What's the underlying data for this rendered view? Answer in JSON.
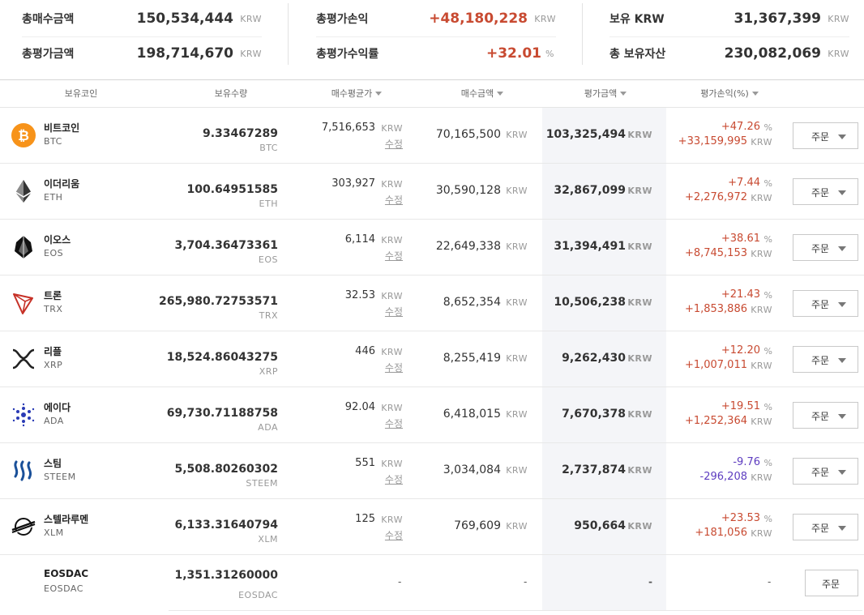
{
  "summary": {
    "total_buy": {
      "label": "총매수금액",
      "value": "150,534,444",
      "unit": "KRW"
    },
    "total_eval": {
      "label": "총평가금액",
      "value": "198,714,670",
      "unit": "KRW"
    },
    "total_pl": {
      "label": "총평가손익",
      "value": "+48,180,228",
      "unit": "KRW"
    },
    "total_rate": {
      "label": "총평가수익률",
      "value": "+32.01",
      "unit": "%"
    },
    "krw": {
      "label": "보유 KRW",
      "value": "31,367,399",
      "unit": "KRW"
    },
    "total_asset": {
      "label": "총 보유자산",
      "value": "230,082,069",
      "unit": "KRW"
    }
  },
  "headers": {
    "coin": "보유코인",
    "qty": "보유수량",
    "avg": "매수평균가",
    "buy": "매수금액",
    "eval": "평가금액",
    "pl": "평가손익(%)"
  },
  "colors": {
    "up": "#c84a31",
    "down": "#5d3cc0",
    "eval_bg": "#f4f5f8"
  },
  "rows": [
    {
      "icon": "bitcoin-icon",
      "name": "비트코인",
      "symbol": "BTC",
      "qty": "9.33467289",
      "qty_unit": "BTC",
      "avg": "7,516,653",
      "avg_unit": "KRW",
      "edit": "수정",
      "buy": "70,165,500",
      "buy_unit": "KRW",
      "eval": "103,325,494",
      "eval_unit": "KRW",
      "pct": "+47.26",
      "pct_unit": "%",
      "pl": "+33,159,995",
      "pl_unit": "KRW",
      "dir": "up",
      "order": "주문"
    },
    {
      "icon": "ethereum-icon",
      "name": "이더리움",
      "symbol": "ETH",
      "qty": "100.64951585",
      "qty_unit": "ETH",
      "avg": "303,927",
      "avg_unit": "KRW",
      "edit": "수정",
      "buy": "30,590,128",
      "buy_unit": "KRW",
      "eval": "32,867,099",
      "eval_unit": "KRW",
      "pct": "+7.44",
      "pct_unit": "%",
      "pl": "+2,276,972",
      "pl_unit": "KRW",
      "dir": "up",
      "order": "주문"
    },
    {
      "icon": "eos-icon",
      "name": "이오스",
      "symbol": "EOS",
      "qty": "3,704.36473361",
      "qty_unit": "EOS",
      "avg": "6,114",
      "avg_unit": "KRW",
      "edit": "수정",
      "buy": "22,649,338",
      "buy_unit": "KRW",
      "eval": "31,394,491",
      "eval_unit": "KRW",
      "pct": "+38.61",
      "pct_unit": "%",
      "pl": "+8,745,153",
      "pl_unit": "KRW",
      "dir": "up",
      "order": "주문"
    },
    {
      "icon": "tron-icon",
      "name": "트론",
      "symbol": "TRX",
      "qty": "265,980.72753571",
      "qty_unit": "TRX",
      "avg": "32.53",
      "avg_unit": "KRW",
      "edit": "수정",
      "buy": "8,652,354",
      "buy_unit": "KRW",
      "eval": "10,506,238",
      "eval_unit": "KRW",
      "pct": "+21.43",
      "pct_unit": "%",
      "pl": "+1,853,886",
      "pl_unit": "KRW",
      "dir": "up",
      "order": "주문"
    },
    {
      "icon": "ripple-icon",
      "name": "리플",
      "symbol": "XRP",
      "qty": "18,524.86043275",
      "qty_unit": "XRP",
      "avg": "446",
      "avg_unit": "KRW",
      "edit": "수정",
      "buy": "8,255,419",
      "buy_unit": "KRW",
      "eval": "9,262,430",
      "eval_unit": "KRW",
      "pct": "+12.20",
      "pct_unit": "%",
      "pl": "+1,007,011",
      "pl_unit": "KRW",
      "dir": "up",
      "order": "주문"
    },
    {
      "icon": "cardano-icon",
      "name": "에이다",
      "symbol": "ADA",
      "qty": "69,730.71188758",
      "qty_unit": "ADA",
      "avg": "92.04",
      "avg_unit": "KRW",
      "edit": "수정",
      "buy": "6,418,015",
      "buy_unit": "KRW",
      "eval": "7,670,378",
      "eval_unit": "KRW",
      "pct": "+19.51",
      "pct_unit": "%",
      "pl": "+1,252,364",
      "pl_unit": "KRW",
      "dir": "up",
      "order": "주문"
    },
    {
      "icon": "steem-icon",
      "name": "스팀",
      "symbol": "STEEM",
      "qty": "5,508.80260302",
      "qty_unit": "STEEM",
      "avg": "551",
      "avg_unit": "KRW",
      "edit": "수정",
      "buy": "3,034,084",
      "buy_unit": "KRW",
      "eval": "2,737,874",
      "eval_unit": "KRW",
      "pct": "-9.76",
      "pct_unit": "%",
      "pl": "-296,208",
      "pl_unit": "KRW",
      "dir": "down",
      "order": "주문"
    },
    {
      "icon": "stellar-icon",
      "name": "스텔라루멘",
      "symbol": "XLM",
      "qty": "6,133.31640794",
      "qty_unit": "XLM",
      "avg": "125",
      "avg_unit": "KRW",
      "edit": "수정",
      "buy": "769,609",
      "buy_unit": "KRW",
      "eval": "950,664",
      "eval_unit": "KRW",
      "pct": "+23.53",
      "pct_unit": "%",
      "pl": "+181,056",
      "pl_unit": "KRW",
      "dir": "up",
      "order": "주문"
    },
    {
      "icon": "",
      "name": "EOSDAC",
      "symbol": "EOSDAC",
      "qty": "1,351.31260000",
      "qty_unit": "EOSDAC",
      "avg_dash": "-",
      "buy_dash": "-",
      "eval_dash": "-",
      "pl_dash": "-",
      "order": "주문"
    }
  ]
}
